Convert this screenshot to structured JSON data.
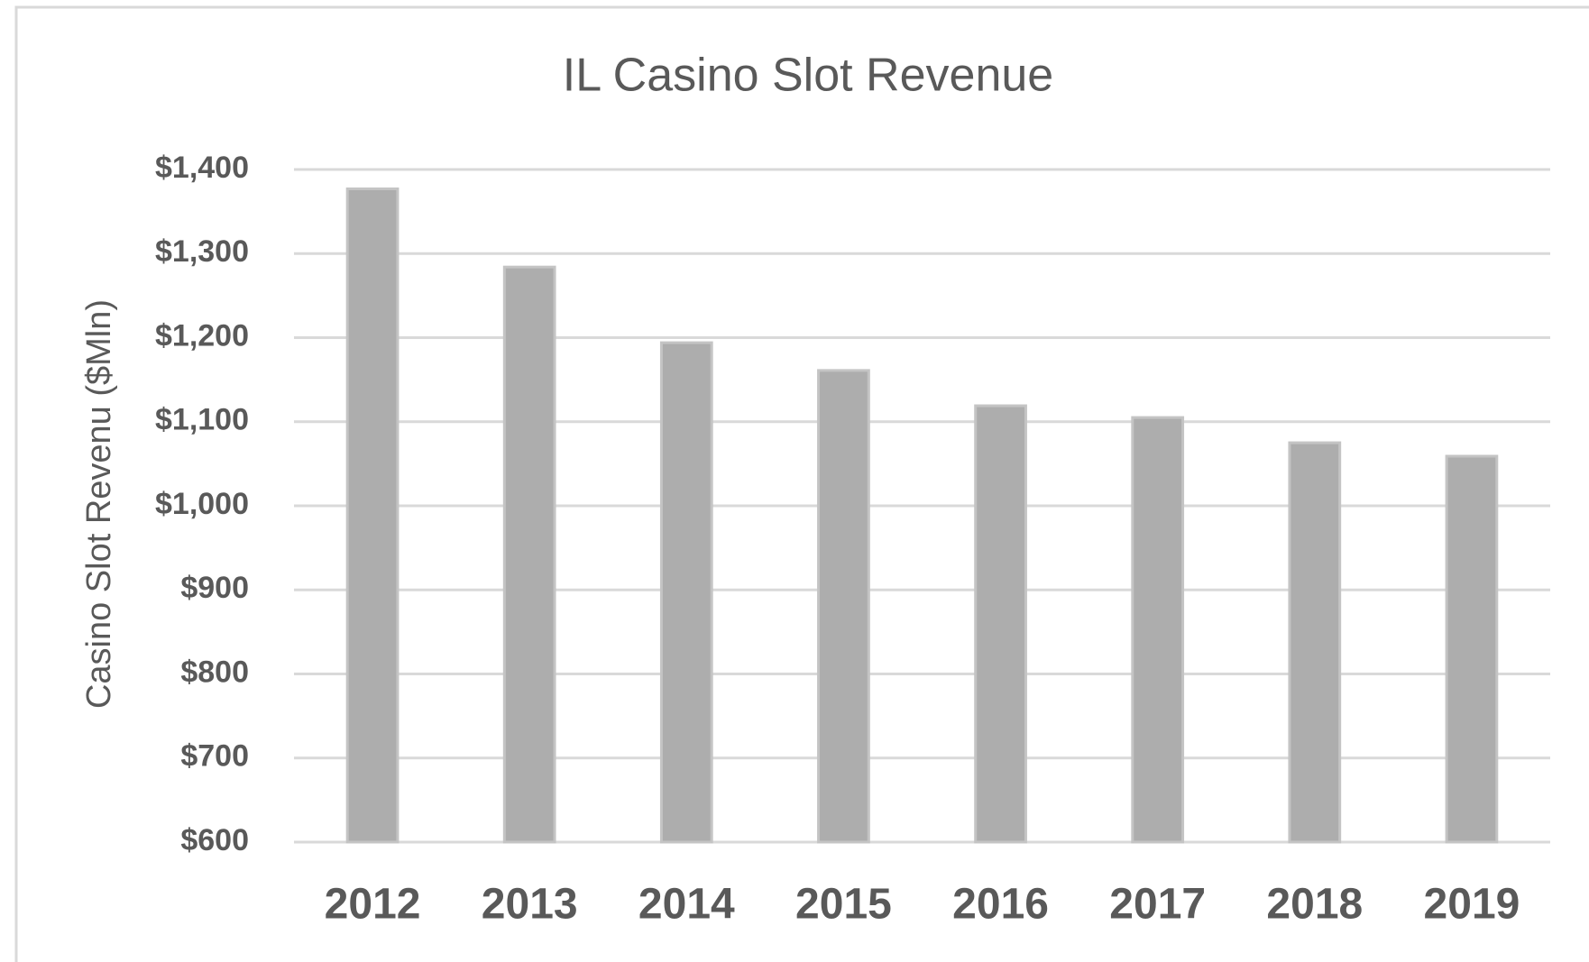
{
  "chart_data": {
    "type": "bar",
    "title": "IL Casino Slot Revenue",
    "y_label": "Casino Slot Revenu ($Mln)",
    "categories": [
      "2012",
      "2013",
      "2014",
      "2015",
      "2016",
      "2017",
      "2018",
      "2019"
    ],
    "values": [
      1377,
      1284,
      1194,
      1161,
      1119,
      1105,
      1075,
      1059
    ],
    "color": "#adadad",
    "ylim": [
      600,
      1400
    ],
    "yticks": [
      {
        "value": 600,
        "label": "$600"
      },
      {
        "value": 700,
        "label": "$700"
      },
      {
        "value": 800,
        "label": "$800"
      },
      {
        "value": 900,
        "label": "$900"
      },
      {
        "value": 1000,
        "label": "$1,000"
      },
      {
        "value": 1100,
        "label": "$1,100"
      },
      {
        "value": 1200,
        "label": "$1,200"
      },
      {
        "value": 1300,
        "label": "$1,300"
      },
      {
        "value": 1400,
        "label": "$1,400"
      }
    ],
    "grid": true
  }
}
